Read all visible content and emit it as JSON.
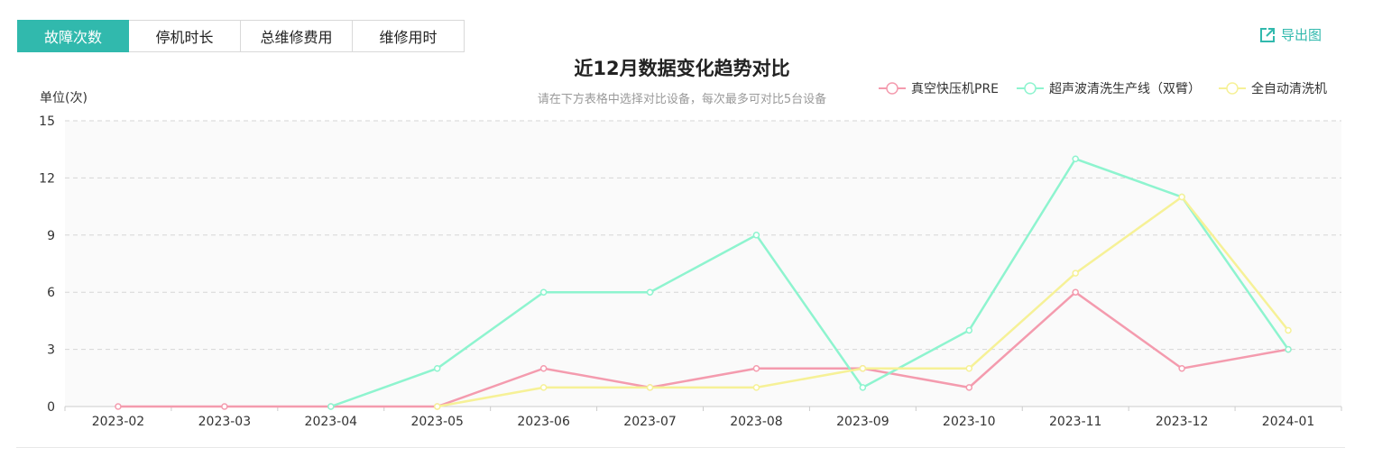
{
  "tabs": [
    {
      "label": "故障次数",
      "active": true
    },
    {
      "label": "停机时长",
      "active": false
    },
    {
      "label": "总维修费用",
      "active": false
    },
    {
      "label": "维修用时",
      "active": false
    }
  ],
  "export_label": "导出图",
  "accent_color": "#31b9ad",
  "chart_data": {
    "type": "line",
    "title": "近12月数据变化趋势对比",
    "subtitle": "请在下方表格中选择对比设备，每次最多可对比5台设备",
    "ylabel": "单位(次)",
    "xlabel": "",
    "ylim": [
      0,
      15
    ],
    "yticks": [
      0,
      3,
      6,
      9,
      12,
      15
    ],
    "grid": true,
    "legend_position": "top-right",
    "categories": [
      "2023-02",
      "2023-03",
      "2023-04",
      "2023-05",
      "2023-06",
      "2023-07",
      "2023-08",
      "2023-09",
      "2023-10",
      "2023-11",
      "2023-12",
      "2024-01"
    ],
    "series": [
      {
        "name": "真空快压机PRE",
        "color": "#f49bae",
        "values": [
          0,
          0,
          0,
          0,
          2,
          1,
          2,
          2,
          1,
          6,
          2,
          3
        ]
      },
      {
        "name": "超声波清洗生产线（双臂）",
        "color": "#8ef4cf",
        "values": [
          null,
          null,
          0,
          2,
          6,
          6,
          9,
          1,
          4,
          13,
          11,
          3
        ]
      },
      {
        "name": "全自动清洗机",
        "color": "#f6f197",
        "values": [
          null,
          null,
          null,
          0,
          1,
          1,
          1,
          2,
          2,
          7,
          11,
          4
        ]
      }
    ]
  }
}
